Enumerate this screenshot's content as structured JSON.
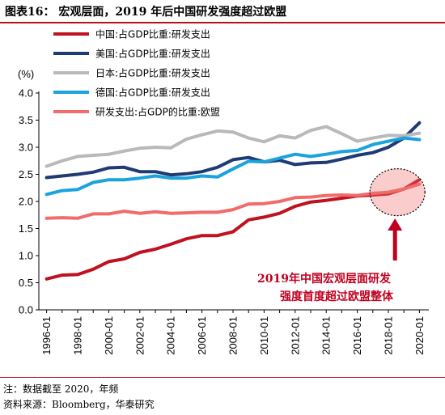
{
  "figure_title": "图表16：  宏观层面，2019 年后中国研发强度超过欧盟",
  "notes": {
    "note": "注：数据截至 2020，年频",
    "source": "资料来源：Bloomberg，华泰研究"
  },
  "colors": {
    "rule": "#b5121b",
    "annotation": "#c0001e"
  },
  "chart_data": {
    "type": "line",
    "unit_label": "(%)",
    "ylim": [
      0.0,
      4.0
    ],
    "yticks": [
      "0.0",
      "0.5",
      "1.0",
      "1.5",
      "2.0",
      "2.5",
      "3.0",
      "3.5",
      "4.0"
    ],
    "x": [
      "1996",
      "1997",
      "1998",
      "1999",
      "2000",
      "2001",
      "2002",
      "2003",
      "2004",
      "2005",
      "2006",
      "2007",
      "2008",
      "2009",
      "2010",
      "2011",
      "2012",
      "2013",
      "2014",
      "2015",
      "2016",
      "2017",
      "2018",
      "2019",
      "2020"
    ],
    "xticks": [
      "1996-01",
      "1998-01",
      "2000-01",
      "2002-01",
      "2004-01",
      "2006-01",
      "2008-01",
      "2010-01",
      "2012-01",
      "2014-01",
      "2016-01",
      "2018-01",
      "2020-01"
    ],
    "grid": false,
    "legend_position": "top-left",
    "series": [
      {
        "name": "中国:占GDP比重:研发支出",
        "color": "#c0111f",
        "values": [
          0.57,
          0.64,
          0.65,
          0.75,
          0.89,
          0.94,
          1.06,
          1.12,
          1.21,
          1.31,
          1.37,
          1.37,
          1.44,
          1.66,
          1.71,
          1.78,
          1.91,
          1.99,
          2.02,
          2.06,
          2.1,
          2.12,
          2.14,
          2.23,
          2.4
        ]
      },
      {
        "name": "美国:占GDP比重:研发支出",
        "color": "#1f3b73",
        "values": [
          2.44,
          2.47,
          2.5,
          2.54,
          2.62,
          2.63,
          2.55,
          2.55,
          2.49,
          2.51,
          2.55,
          2.63,
          2.77,
          2.81,
          2.73,
          2.76,
          2.68,
          2.71,
          2.72,
          2.78,
          2.85,
          2.9,
          3.0,
          3.17,
          3.45
        ]
      },
      {
        "name": "日本:占GDP比重:研发支出",
        "color": "#b9b9b9",
        "values": [
          2.65,
          2.75,
          2.83,
          2.85,
          2.87,
          2.93,
          2.98,
          3.0,
          2.99,
          3.15,
          3.23,
          3.3,
          3.28,
          3.17,
          3.1,
          3.21,
          3.17,
          3.31,
          3.38,
          3.25,
          3.11,
          3.17,
          3.22,
          3.21,
          3.26
        ]
      },
      {
        "name": "德国:占GDP比重:研发支出",
        "color": "#1aa3dc",
        "values": [
          2.13,
          2.2,
          2.22,
          2.35,
          2.4,
          2.4,
          2.43,
          2.47,
          2.43,
          2.43,
          2.47,
          2.45,
          2.6,
          2.74,
          2.73,
          2.8,
          2.87,
          2.83,
          2.87,
          2.92,
          2.94,
          3.05,
          3.11,
          3.17,
          3.14
        ]
      },
      {
        "name": "研发支出:占GDP的比重:欧盟",
        "color": "#f16b6b",
        "values": [
          1.69,
          1.7,
          1.69,
          1.77,
          1.77,
          1.82,
          1.78,
          1.81,
          1.78,
          1.79,
          1.8,
          1.8,
          1.85,
          1.95,
          1.96,
          2.0,
          2.07,
          2.08,
          2.11,
          2.12,
          2.11,
          2.15,
          2.17,
          2.23,
          2.32
        ]
      }
    ],
    "annotation": {
      "text_line1": "2019年中国宏观层面研发",
      "text_line2": "强度首度超过欧盟整体",
      "highlight_year": "2019"
    }
  }
}
